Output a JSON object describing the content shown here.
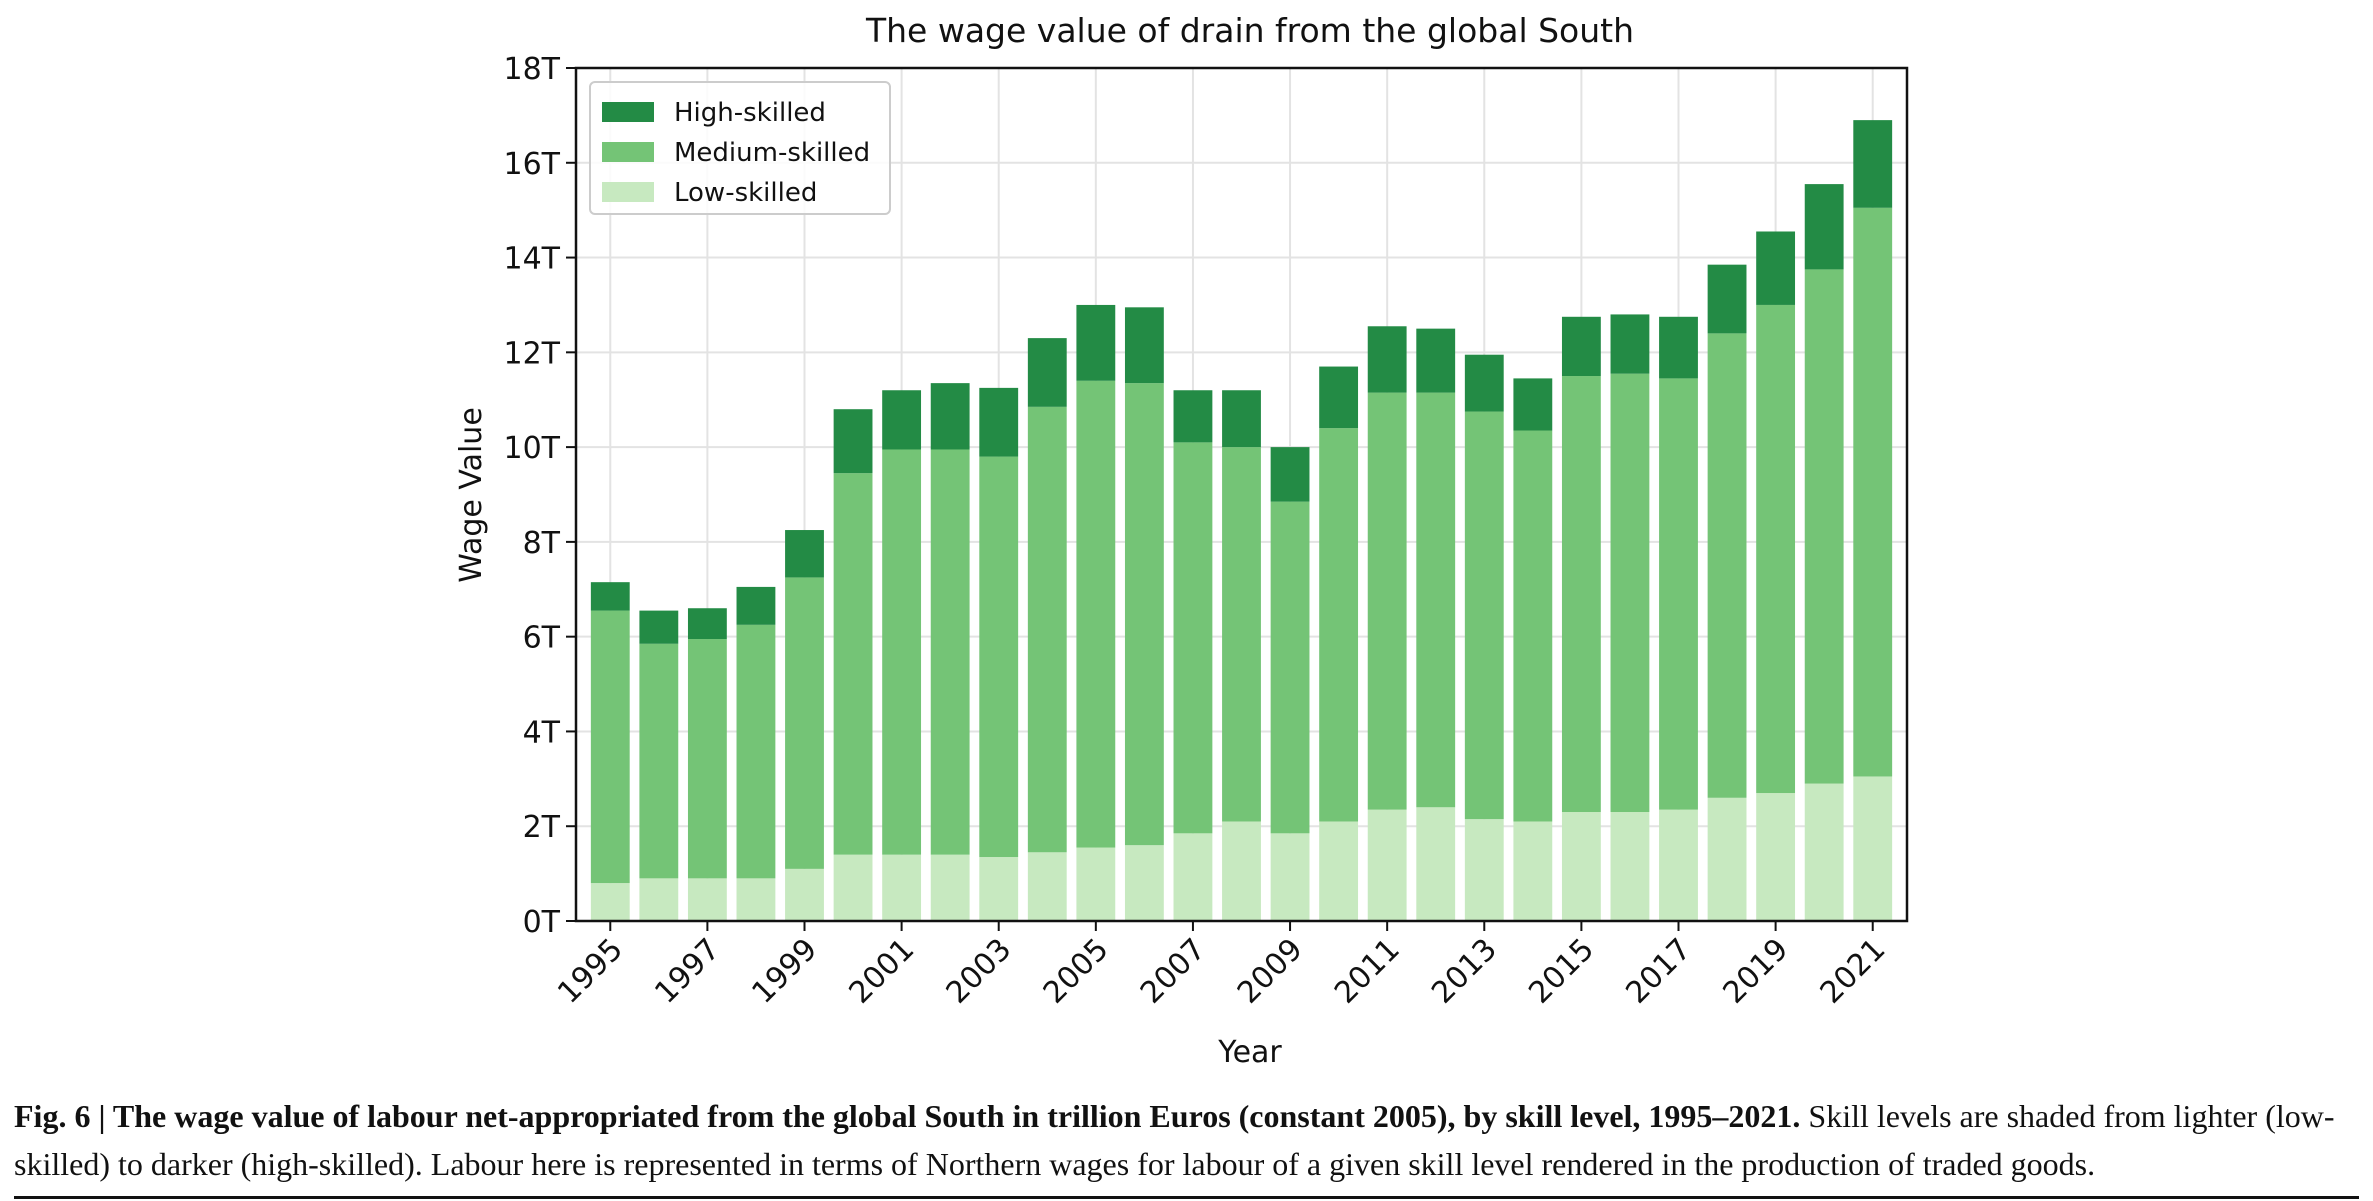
{
  "chart_data": {
    "type": "bar",
    "stacked": true,
    "title": "The wage value of drain from the global South",
    "xlabel": "Year",
    "ylabel": "Wage Value",
    "ylim": [
      0,
      18
    ],
    "yticks": [
      "0T",
      "2T",
      "4T",
      "6T",
      "8T",
      "10T",
      "12T",
      "14T",
      "16T",
      "18T"
    ],
    "categories": [
      "1995",
      "1996",
      "1997",
      "1998",
      "1999",
      "2000",
      "2001",
      "2002",
      "2003",
      "2004",
      "2005",
      "2006",
      "2007",
      "2008",
      "2009",
      "2010",
      "2011",
      "2012",
      "2013",
      "2014",
      "2015",
      "2016",
      "2017",
      "2018",
      "2019",
      "2020",
      "2021"
    ],
    "xtick_labels": [
      "1995",
      "1997",
      "1999",
      "2001",
      "2003",
      "2005",
      "2007",
      "2009",
      "2011",
      "2013",
      "2015",
      "2017",
      "2019",
      "2021"
    ],
    "grid": true,
    "legend_position": "top-left",
    "series": [
      {
        "name": "Low-skilled",
        "color": "#c7e9c0",
        "values": [
          0.8,
          0.9,
          0.9,
          0.9,
          1.1,
          1.4,
          1.4,
          1.4,
          1.35,
          1.45,
          1.55,
          1.6,
          1.85,
          2.1,
          1.85,
          2.1,
          2.35,
          2.4,
          2.15,
          2.1,
          2.3,
          2.3,
          2.35,
          2.6,
          2.7,
          2.9,
          3.05
        ]
      },
      {
        "name": "Medium-skilled",
        "color": "#74c476",
        "values": [
          5.75,
          4.95,
          5.05,
          5.35,
          6.15,
          8.05,
          8.55,
          8.55,
          8.45,
          9.4,
          9.85,
          9.75,
          8.25,
          7.9,
          7.0,
          8.3,
          8.8,
          8.75,
          8.6,
          8.25,
          9.2,
          9.25,
          9.1,
          9.8,
          10.3,
          10.85,
          12.0
        ]
      },
      {
        "name": "High-skilled",
        "color": "#238b45",
        "values": [
          0.6,
          0.7,
          0.65,
          0.8,
          1.0,
          1.35,
          1.25,
          1.4,
          1.45,
          1.45,
          1.6,
          1.6,
          1.1,
          1.2,
          1.15,
          1.3,
          1.4,
          1.35,
          1.2,
          1.1,
          1.25,
          1.25,
          1.3,
          1.45,
          1.55,
          1.8,
          1.85
        ]
      }
    ]
  },
  "caption": {
    "bold": "Fig. 6 | The wage value of labour net-appropriated from the global South in trillion Euros (constant 2005), by skill level, 1995–2021.",
    "text": " Skill levels are shaded from lighter (low-skilled) to darker (high-skilled). Labour here is represented in terms of Northern wages for labour of a given skill level rendered in the production of traded goods."
  }
}
